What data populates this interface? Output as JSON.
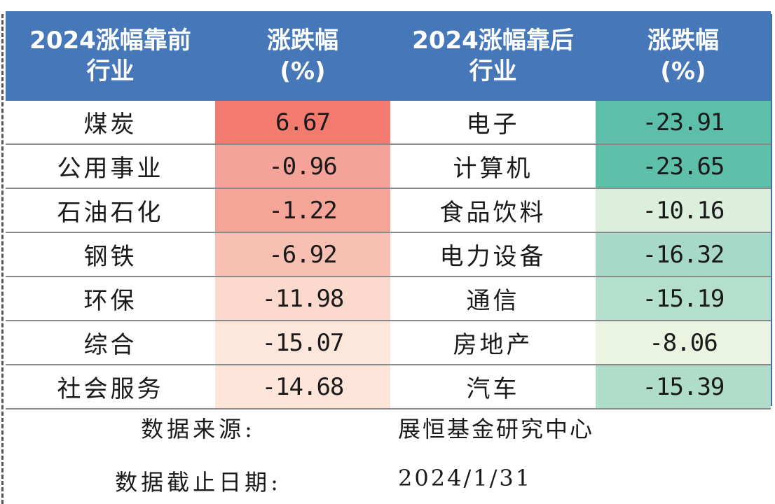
{
  "table": {
    "headers": [
      {
        "line1": "2024涨幅靠前",
        "line2": "行业"
      },
      {
        "line1": "涨跌幅",
        "line2": "(%)"
      },
      {
        "line1": "2024涨幅靠后",
        "line2": "行业"
      },
      {
        "line1": "涨跌幅",
        "line2": "(%)"
      }
    ],
    "rows": [
      {
        "top_industry": "煤炭",
        "top_change": "6.67",
        "top_color": "#f27a6e",
        "bottom_industry": "电子",
        "bottom_change": "-23.91",
        "bottom_color": "#5dbfa9"
      },
      {
        "top_industry": "公用事业",
        "top_change": "-0.96",
        "top_color": "#f5a398",
        "bottom_industry": "计算机",
        "bottom_change": "-23.65",
        "bottom_color": "#5fc0aa"
      },
      {
        "top_industry": "石油石化",
        "top_change": "-1.22",
        "top_color": "#f5a598",
        "bottom_industry": "食品饮料",
        "bottom_change": "-10.16",
        "bottom_color": "#dcefdc"
      },
      {
        "top_industry": "钢铁",
        "top_change": "-6.92",
        "top_color": "#f8c0b2",
        "bottom_industry": "电力设备",
        "bottom_change": "-16.32",
        "bottom_color": "#a6d9c8"
      },
      {
        "top_industry": "环保",
        "top_change": "-11.98",
        "top_color": "#fbd9cc",
        "bottom_industry": "通信",
        "bottom_change": "-15.19",
        "bottom_color": "#b3dfcc"
      },
      {
        "top_industry": "综合",
        "top_change": "-15.07",
        "top_color": "#fde7dc",
        "bottom_industry": "房地产",
        "bottom_change": "-8.06",
        "bottom_color": "#eaf4e0"
      },
      {
        "top_industry": "社会服务",
        "top_change": "-14.68",
        "top_color": "#fde5d9",
        "bottom_industry": "汽车",
        "bottom_change": "-15.39",
        "bottom_color": "#b0ddca"
      }
    ]
  },
  "footer": {
    "source_label": "数据来源:",
    "source_value": "展恒基金研究中心",
    "date_label": "数据截止日期:",
    "date_value": "2024/1/31"
  },
  "chart_data": {
    "type": "table",
    "columns": [
      "2024涨幅靠前行业",
      "涨跌幅(%)",
      "2024涨幅靠后行业",
      "涨跌幅(%)"
    ],
    "rows": [
      [
        "煤炭",
        6.67,
        "电子",
        -23.91
      ],
      [
        "公用事业",
        -0.96,
        "计算机",
        -23.65
      ],
      [
        "石油石化",
        -1.22,
        "食品饮料",
        -10.16
      ],
      [
        "钢铁",
        -6.92,
        "电力设备",
        -16.32
      ],
      [
        "环保",
        -11.98,
        "通信",
        -15.19
      ],
      [
        "综合",
        -15.07,
        "房地产",
        -8.06
      ],
      [
        "社会服务",
        -14.68,
        "汽车",
        -15.39
      ]
    ]
  }
}
